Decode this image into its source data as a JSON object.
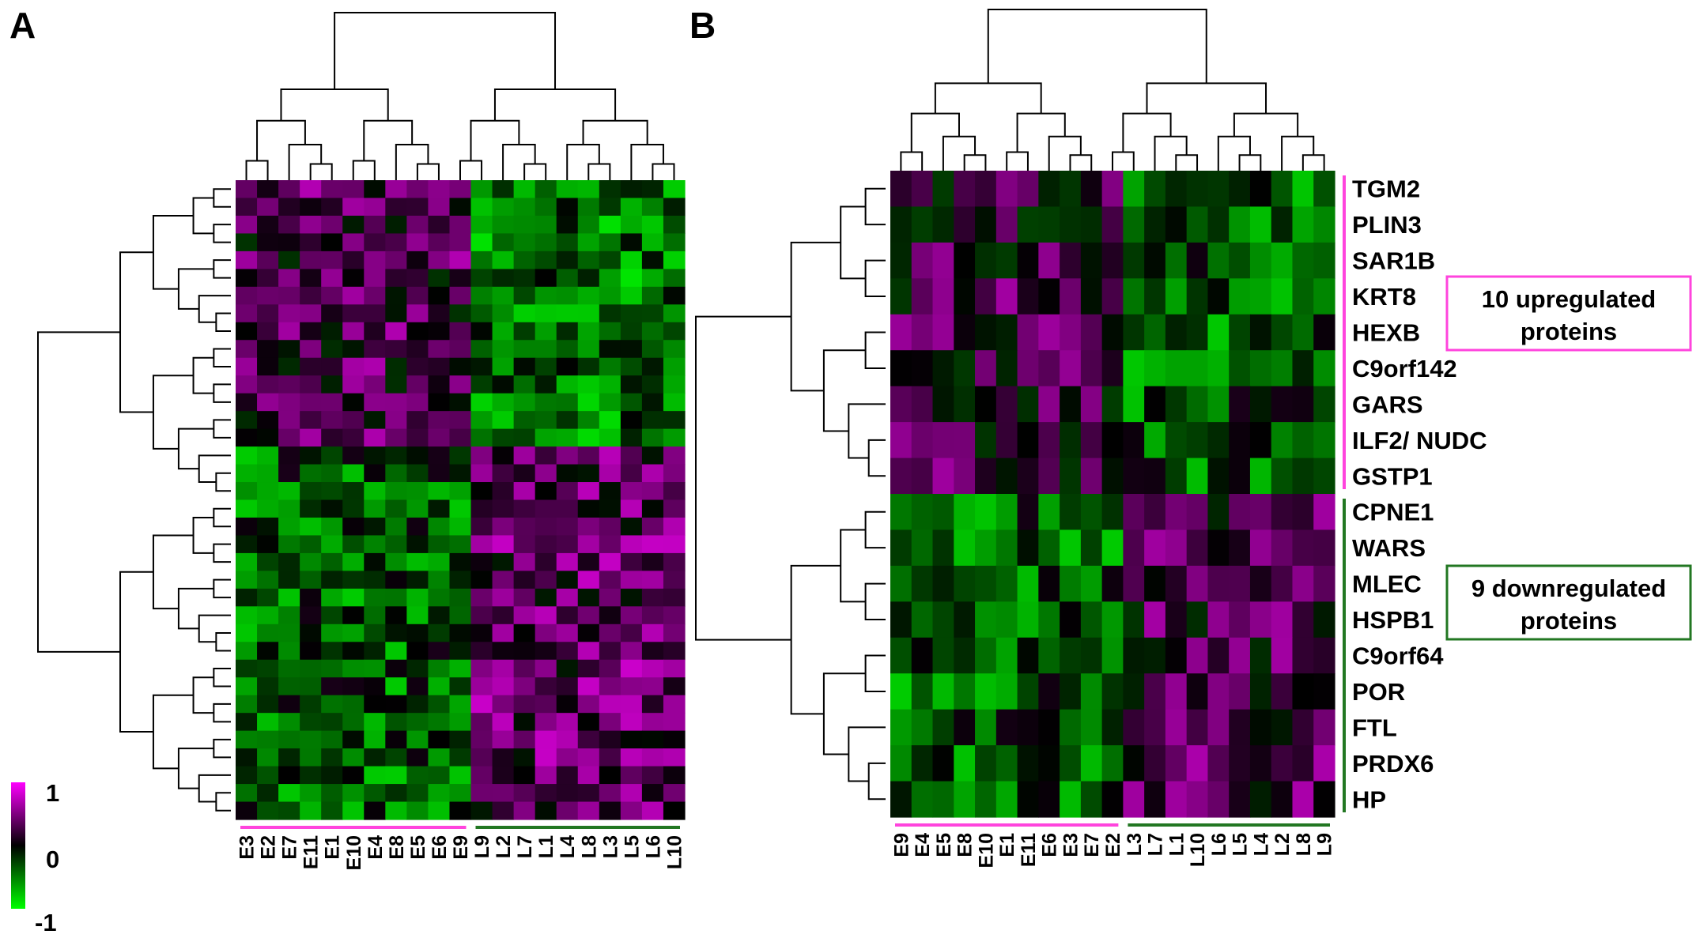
{
  "panels": [
    {
      "letter": "A",
      "chart_data": {
        "type": "heatmap",
        "color_scale": {
          "min": -1,
          "mid": 0,
          "max": 1,
          "low_color": "#00ff00",
          "mid_color": "#000000",
          "high_color": "#ff00ff"
        },
        "columns": [
          "E3",
          "E2",
          "E7",
          "E11",
          "E1",
          "E10",
          "E4",
          "E8",
          "E5",
          "E6",
          "E9",
          "L9",
          "L2",
          "L7",
          "L1",
          "L4",
          "L8",
          "L3",
          "L5",
          "L6",
          "L10"
        ],
        "column_groups": [
          {
            "group": "E",
            "color": "#ff44dd",
            "columns": 11
          },
          {
            "group": "L",
            "color": "#227722",
            "columns": 10
          }
        ],
        "rows": 36,
        "row_labels": [],
        "row_dendrogram": true,
        "column_dendrogram": true
      }
    },
    {
      "letter": "B",
      "chart_data": {
        "type": "heatmap",
        "color_scale": {
          "min": -1,
          "mid": 0,
          "max": 1,
          "low_color": "#00ff00",
          "mid_color": "#000000",
          "high_color": "#ff00ff"
        },
        "columns": [
          "E9",
          "E4",
          "E5",
          "E8",
          "E10",
          "E1",
          "E11",
          "E6",
          "E3",
          "E7",
          "E2",
          "L3",
          "L7",
          "L1",
          "L10",
          "L6",
          "L5",
          "L4",
          "L2",
          "L8",
          "L9"
        ],
        "column_groups": [
          {
            "group": "E",
            "color": "#ff44dd",
            "columns": 11
          },
          {
            "group": "L",
            "color": "#227722",
            "columns": 10
          }
        ],
        "row_labels": [
          "TGM2",
          "PLIN3",
          "SAR1B",
          "KRT8",
          "HEXB",
          "C9orf142",
          "GARS",
          "ILF2/ NUDC",
          "GSTP1",
          "CPNE1",
          "WARS",
          "MLEC",
          "HSPB1",
          "C9orf64",
          "POR",
          "FTL",
          "PRDX6",
          "HP"
        ],
        "row_groups": [
          {
            "label": "10 upregulated proteins",
            "color": "#ff44dd",
            "rows": [
              "TGM2",
              "PLIN3",
              "SAR1B",
              "KRT8",
              "HEXB",
              "C9orf142",
              "GARS",
              "ILF2/ NUDC",
              "GSTP1"
            ]
          },
          {
            "label": "9 downregulated proteins",
            "color": "#227722",
            "rows": [
              "CPNE1",
              "WARS",
              "MLEC",
              "HSPB1",
              "C9orf64",
              "POR",
              "FTL",
              "PRDX6",
              "HP"
            ]
          }
        ],
        "row_dendrogram": true,
        "column_dendrogram": true
      }
    }
  ],
  "legend": {
    "max_label": "1",
    "mid_label": "0",
    "min_label": "-1"
  }
}
